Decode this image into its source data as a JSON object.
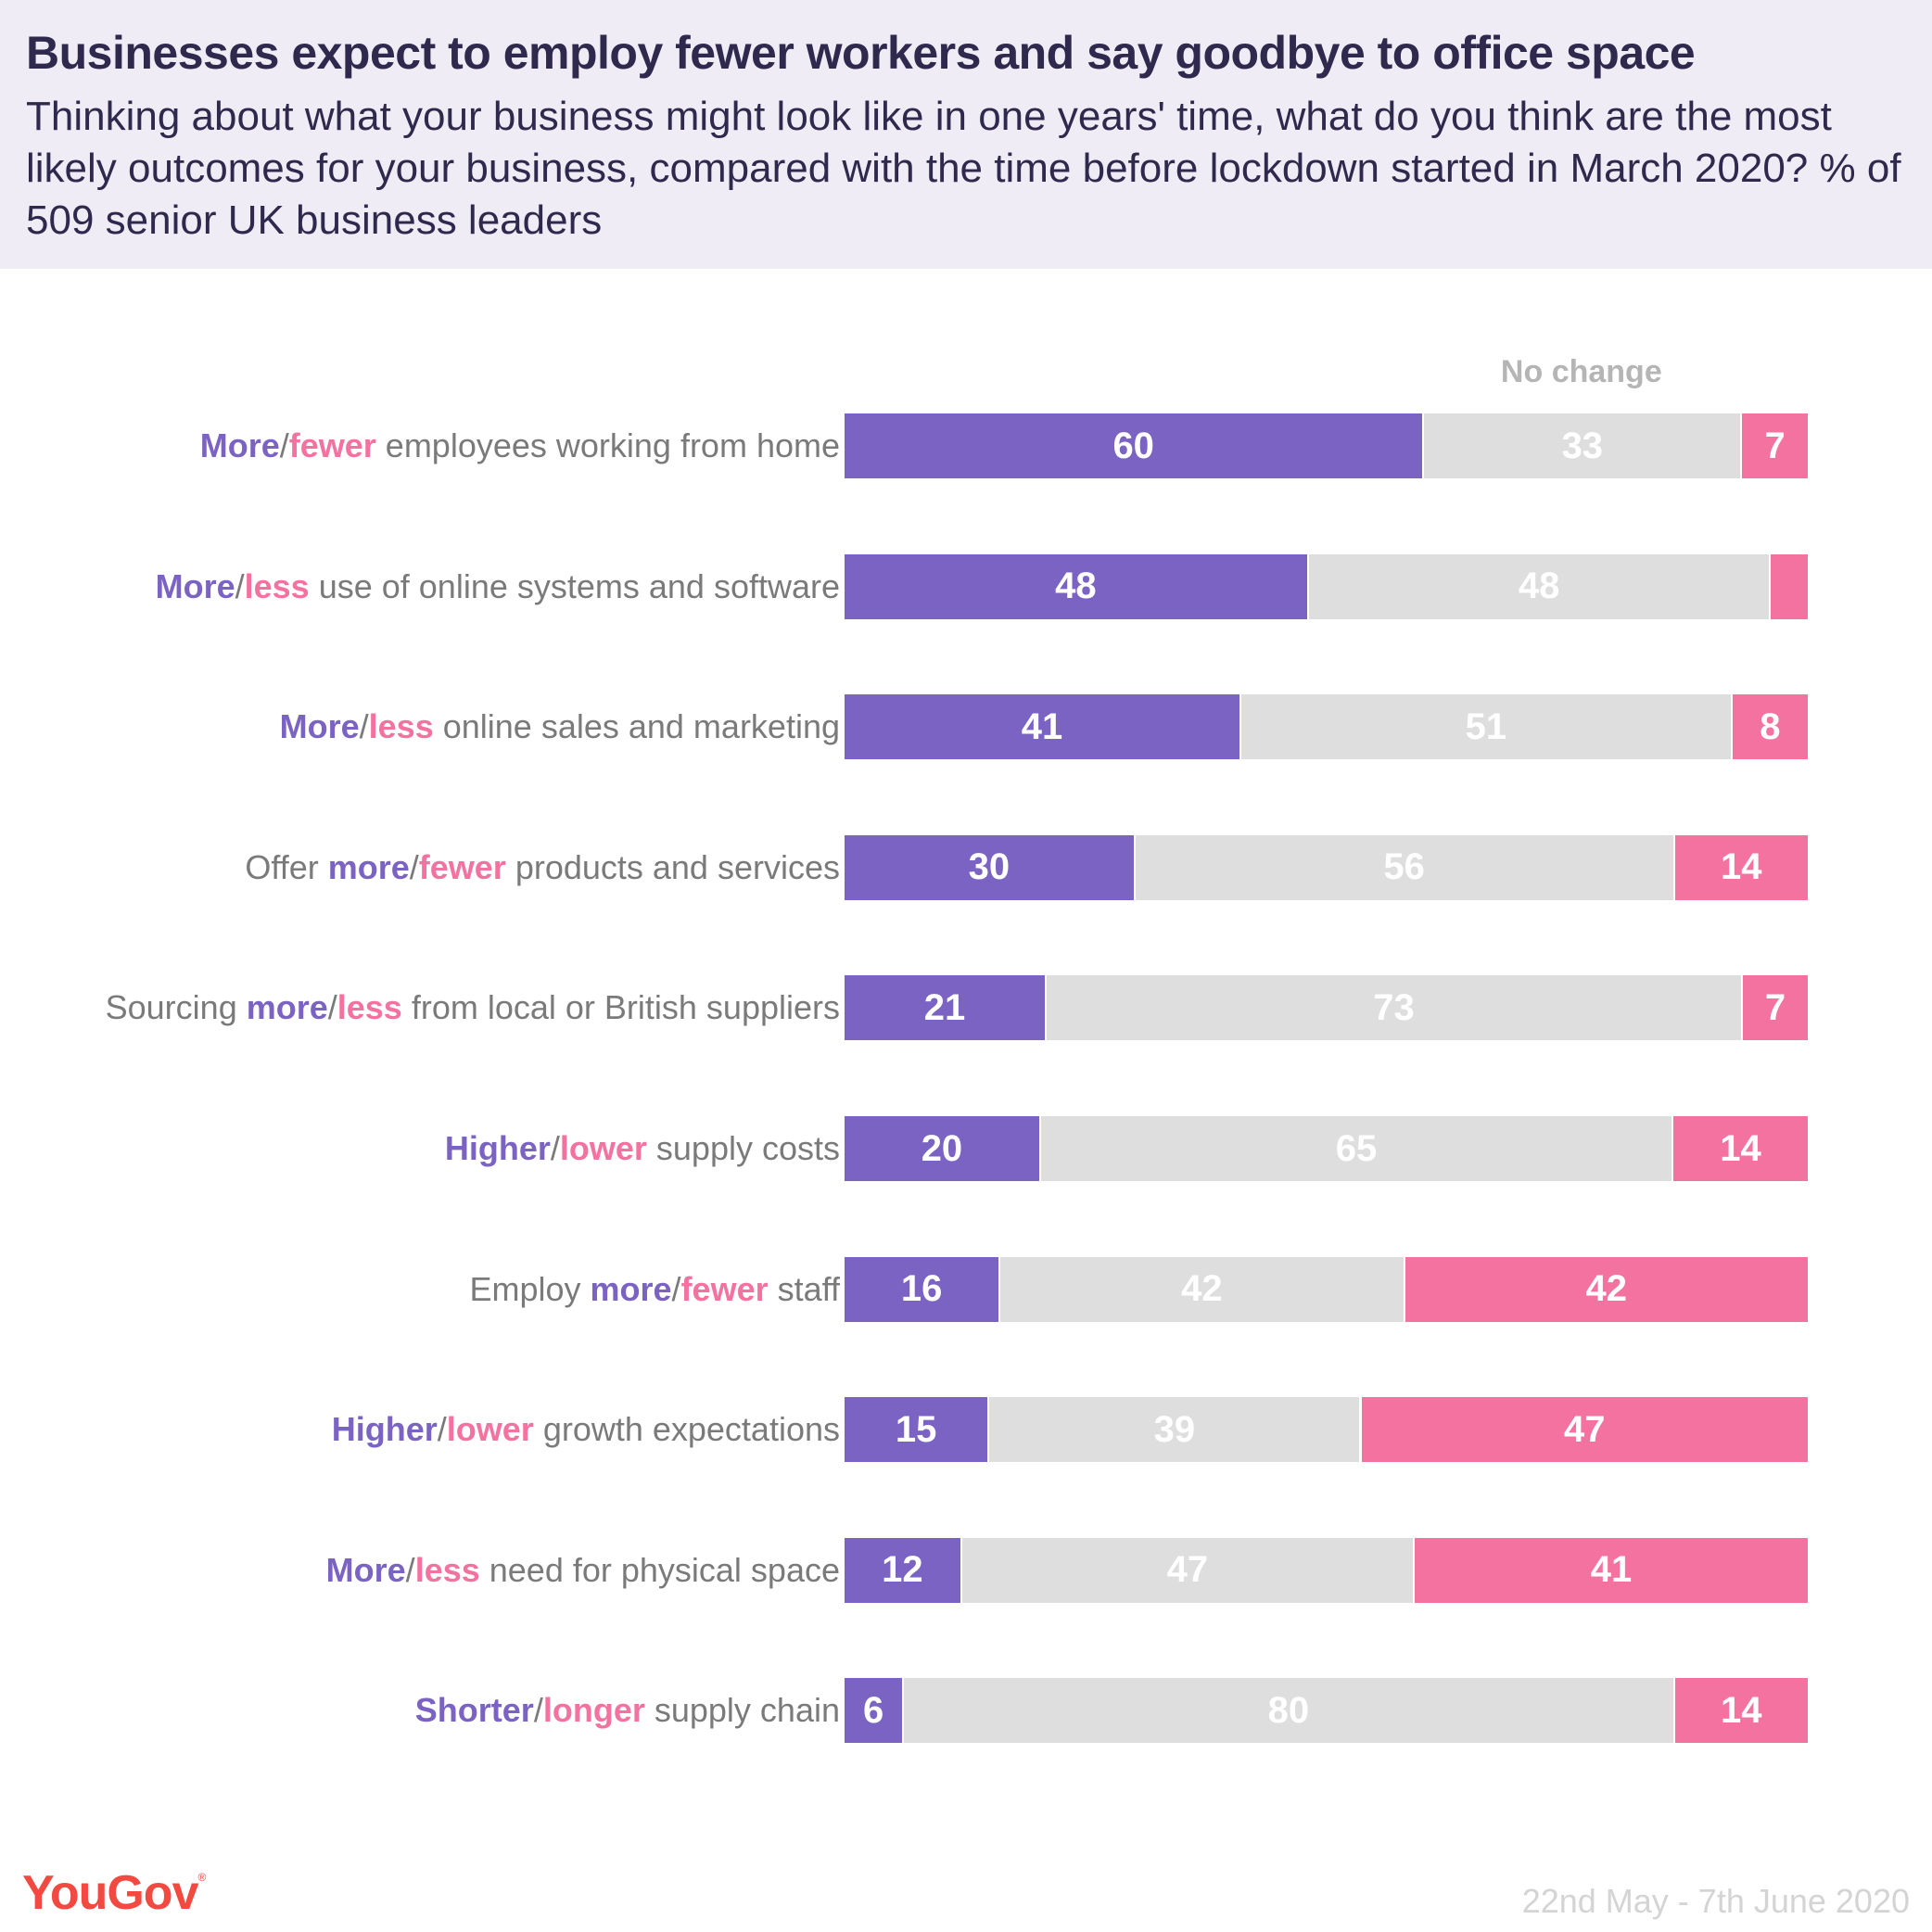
{
  "header": {
    "title": "Businesses expect to employ fewer workers and say goodbye to office space",
    "subtitle": "Thinking about what your business might look like in one years' time, what do you think are the most likely outcomes for your business, compared with the time before lockdown started in March 2020? % of 509 senior UK business leaders"
  },
  "footer": {
    "logo": "YouGov",
    "logo_mark": "®",
    "date": "22nd May - 7th June 2020"
  },
  "colors": {
    "positive": "#7b63c3",
    "no_change": "#dedede",
    "negative": "#f472a0",
    "header_bg": "#efecf6",
    "title_text": "#2f2a4d",
    "logo": "#f24a41"
  },
  "chart_data": {
    "type": "bar",
    "orientation": "horizontal",
    "stacked": true,
    "title": "Businesses expect to employ fewer workers and say goodbye to office space",
    "xlabel": "",
    "ylabel": "",
    "xlim": [
      0,
      100
    ],
    "grid": false,
    "legend": {
      "entries": [
        "No change"
      ],
      "placement": "top, above middle segment"
    },
    "categories": [
      {
        "prefix": "",
        "positive": "More",
        "negative": "fewer",
        "suffix": " employees working from home"
      },
      {
        "prefix": "",
        "positive": "More",
        "negative": "less",
        "suffix": " use of online systems and software"
      },
      {
        "prefix": "",
        "positive": "More",
        "negative": "less",
        "suffix": " online sales and marketing"
      },
      {
        "prefix": "Offer ",
        "positive": "more",
        "negative": "fewer",
        "suffix": " products and services"
      },
      {
        "prefix": "Sourcing ",
        "positive": "more",
        "negative": "less",
        "suffix": " from local or British suppliers"
      },
      {
        "prefix": "",
        "positive": "Higher",
        "negative": "lower",
        "suffix": " supply costs"
      },
      {
        "prefix": "Employ ",
        "positive": "more",
        "negative": "fewer",
        "suffix": " staff"
      },
      {
        "prefix": "",
        "positive": "Higher",
        "negative": "lower",
        "suffix": " growth expectations"
      },
      {
        "prefix": "",
        "positive": "More",
        "negative": "less",
        "suffix": " need for physical space"
      },
      {
        "prefix": "",
        "positive": "Shorter",
        "negative": "longer",
        "suffix": " supply chain"
      }
    ],
    "series": [
      {
        "name": "More / Higher / Shorter",
        "color": "#7b63c3",
        "values": [
          60,
          48,
          41,
          30,
          21,
          20,
          16,
          15,
          12,
          6
        ],
        "labels": [
          "60",
          "48",
          "41",
          "30",
          "21",
          "20",
          "16",
          "15",
          "12",
          "6"
        ]
      },
      {
        "name": "No change",
        "color": "#dedede",
        "values": [
          33,
          48,
          51,
          56,
          73,
          65,
          42,
          39,
          47,
          80
        ],
        "labels": [
          "33",
          "48",
          "51",
          "56",
          "73",
          "65",
          "42",
          "39",
          "47",
          "80"
        ]
      },
      {
        "name": "Fewer / Less / Lower / Longer",
        "color": "#f472a0",
        "values": [
          7,
          4,
          8,
          14,
          7,
          14,
          42,
          47,
          41,
          14
        ],
        "labels": [
          "7",
          "",
          "8",
          "14",
          "7",
          "14",
          "42",
          "47",
          "41",
          "14"
        ]
      }
    ],
    "separator": "/"
  }
}
